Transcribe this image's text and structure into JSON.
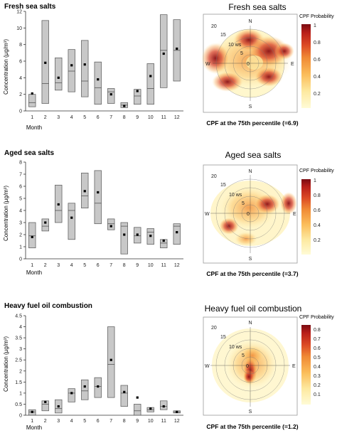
{
  "chart_data": [
    {
      "type": "box",
      "title": "Fresh sea salts",
      "xlabel": "Month",
      "ylabel": "Concentration (µg/m³)",
      "ylim": [
        0,
        12
      ],
      "yticks": [
        0,
        2,
        4,
        6,
        8,
        10,
        12
      ],
      "categories": [
        "1",
        "2",
        "3",
        "4",
        "5",
        "6",
        "7",
        "8",
        "9",
        "10",
        "11",
        "12"
      ],
      "series": [
        {
          "stat": "p25",
          "values": [
            0.5,
            0.9,
            2.5,
            2.3,
            1.7,
            0.8,
            0.9,
            0.4,
            0.8,
            0.8,
            2.8,
            3.6
          ]
        },
        {
          "stat": "median",
          "values": [
            1.0,
            3.3,
            3.4,
            4.8,
            3.6,
            2.8,
            2.3,
            0.7,
            1.8,
            2.7,
            7.3,
            7.3
          ]
        },
        {
          "stat": "p75",
          "values": [
            2.0,
            10.9,
            6.4,
            7.4,
            8.5,
            5.9,
            2.7,
            1.0,
            2.6,
            5.7,
            11.6,
            11.0
          ]
        },
        {
          "stat": "mean",
          "values": [
            2.1,
            5.8,
            4.0,
            5.5,
            5.6,
            3.8,
            2.0,
            0.6,
            2.4,
            4.2,
            6.9,
            7.5
          ]
        }
      ]
    },
    {
      "type": "box",
      "title": "Aged sea salts",
      "xlabel": "Month",
      "ylabel": "Concentration (µg/m³)",
      "ylim": [
        0,
        8
      ],
      "yticks": [
        0,
        1,
        2,
        3,
        4,
        5,
        6,
        7,
        8
      ],
      "categories": [
        "1",
        "2",
        "3",
        "4",
        "5",
        "6",
        "7",
        "8",
        "9",
        "10",
        "11",
        "12"
      ],
      "series": [
        {
          "stat": "p25",
          "values": [
            0.9,
            2.3,
            3.0,
            1.6,
            4.2,
            2.9,
            2.4,
            0.4,
            1.3,
            1.2,
            0.9,
            1.2
          ]
        },
        {
          "stat": "median",
          "values": [
            1.9,
            2.7,
            4.0,
            4.0,
            5.2,
            4.6,
            2.9,
            2.7,
            1.9,
            2.2,
            1.3,
            2.7
          ]
        },
        {
          "stat": "p75",
          "values": [
            3.0,
            3.3,
            6.1,
            4.6,
            7.1,
            7.3,
            3.3,
            3.0,
            2.6,
            2.5,
            1.6,
            2.9
          ]
        },
        {
          "stat": "mean",
          "values": [
            1.8,
            3.0,
            4.5,
            3.4,
            5.6,
            5.5,
            2.7,
            2.0,
            2.0,
            1.9,
            1.5,
            2.2
          ]
        }
      ]
    },
    {
      "type": "box",
      "title": "Heavy fuel oil combustion",
      "xlabel": "Month",
      "ylabel": "Concentration (µg/m³)",
      "ylim": [
        0,
        4.5
      ],
      "yticks": [
        0,
        0.5,
        1,
        1.5,
        2,
        2.5,
        3,
        3.5,
        4,
        4.5
      ],
      "categories": [
        "1",
        "2",
        "3",
        "4",
        "5",
        "6",
        "7",
        "8",
        "9",
        "10",
        "11",
        "12"
      ],
      "series": [
        {
          "stat": "p25",
          "values": [
            0.0,
            0.2,
            0.1,
            0.6,
            0.7,
            0.8,
            0.8,
            0.4,
            0.0,
            0.15,
            0.25,
            0.1
          ]
        },
        {
          "stat": "median",
          "values": [
            0.15,
            0.5,
            0.3,
            1.0,
            1.1,
            1.3,
            2.3,
            1.0,
            0.2,
            0.25,
            0.4,
            0.15
          ]
        },
        {
          "stat": "p75",
          "values": [
            0.25,
            0.65,
            0.7,
            1.2,
            1.6,
            1.7,
            4.0,
            1.35,
            0.5,
            0.35,
            0.65,
            0.2
          ]
        },
        {
          "stat": "mean",
          "values": [
            0.15,
            0.6,
            0.4,
            1.0,
            1.3,
            1.3,
            2.5,
            1.05,
            0.8,
            0.3,
            0.4,
            0.15
          ]
        }
      ]
    },
    {
      "type": "heatmap",
      "subtype": "polar",
      "title": "Fresh sea salts",
      "caption": "CPF at the 75th percentile (=6.9)",
      "colorbar_title": "CPF Probability",
      "colorbar_range": [
        0,
        1
      ],
      "colorbar_ticks": [
        "1",
        "0.8",
        "0.6",
        "0.4",
        "0.2"
      ],
      "ring_labels": [
        "20",
        "15",
        "10 ws",
        "5",
        "0"
      ],
      "directions": [
        "N",
        "E",
        "S",
        "W"
      ]
    },
    {
      "type": "heatmap",
      "subtype": "polar",
      "title": "Aged sea salts",
      "caption": "CPF at the 75th percentile (=3.7)",
      "colorbar_title": "CPF Probability",
      "colorbar_range": [
        0,
        1
      ],
      "colorbar_ticks": [
        "1",
        "0.8",
        "0.6",
        "0.4",
        "0.2"
      ],
      "ring_labels": [
        "20",
        "15",
        "10 ws",
        "5",
        "0"
      ],
      "directions": [
        "N",
        "E",
        "S",
        "W"
      ]
    },
    {
      "type": "heatmap",
      "subtype": "polar",
      "title": "Heavy fuel oil combustion",
      "caption": "CPF at the 75th percentile (=1.2)",
      "colorbar_title": "CPF Probability",
      "colorbar_range": [
        0,
        0.85
      ],
      "colorbar_ticks": [
        "0.8",
        "0.7",
        "0.6",
        "0.5",
        "0.4",
        "0.3",
        "0.2",
        "0.1"
      ],
      "ring_labels": [
        "20",
        "15",
        "10 ws",
        "5",
        "0"
      ],
      "directions": [
        "N",
        "E",
        "S",
        "W"
      ]
    }
  ],
  "colors": {
    "box_fill": "#c8c8c8",
    "box_edge": "#555555",
    "mean_marker": "#000000",
    "cpf_scale": [
      "#fffbd6",
      "#fde9a0",
      "#fbbd5a",
      "#f08a35",
      "#dc4a24",
      "#b81f1a",
      "#7a0c12"
    ]
  }
}
